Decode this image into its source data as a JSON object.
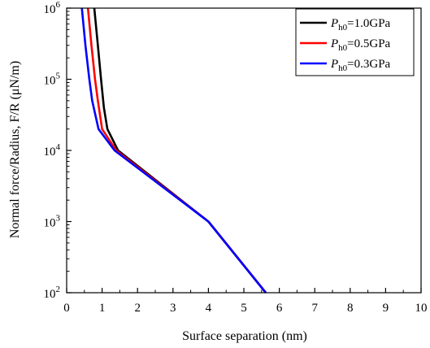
{
  "chart_data": {
    "type": "line",
    "title": "",
    "xlabel": "Surface separation (nm)",
    "ylabel": "Normal force/Radius, F/R (μN/m)",
    "xlim": [
      0,
      10
    ],
    "ylim": [
      100,
      1000000
    ],
    "yscale": "log",
    "grid": false,
    "legend_position": "top-right",
    "x_ticks": [
      "0",
      "1",
      "2",
      "3",
      "4",
      "5",
      "6",
      "7",
      "8",
      "9",
      "10"
    ],
    "y_ticks": [
      {
        "base": "10",
        "exp": "2"
      },
      {
        "base": "10",
        "exp": "3"
      },
      {
        "base": "10",
        "exp": "4"
      },
      {
        "base": "10",
        "exp": "5"
      },
      {
        "base": "10",
        "exp": "6"
      }
    ],
    "series": [
      {
        "name": "P_h0=1.0GPa",
        "label_main": "P",
        "label_sub": "h0",
        "label_rest": "=1.0GPa",
        "color": "#000000",
        "points": [
          [
            0.78,
            1000000
          ],
          [
            0.88,
            300000
          ],
          [
            0.97,
            100000
          ],
          [
            1.05,
            40000
          ],
          [
            1.15,
            20000
          ],
          [
            1.45,
            10000
          ],
          [
            4.0,
            1000
          ],
          [
            5.62,
            100
          ]
        ]
      },
      {
        "name": "P_h0=0.5GPa",
        "label_main": "P",
        "label_sub": "h0",
        "label_rest": "=0.5GPa",
        "color": "#ff0000",
        "points": [
          [
            0.6,
            1000000
          ],
          [
            0.7,
            300000
          ],
          [
            0.8,
            100000
          ],
          [
            0.88,
            50000
          ],
          [
            1.0,
            20000
          ],
          [
            1.4,
            10000
          ],
          [
            4.0,
            1000
          ],
          [
            5.62,
            100
          ]
        ]
      },
      {
        "name": "P_h0=0.3GPa",
        "label_main": "P",
        "label_sub": "h0",
        "label_rest": "=0.3GPa",
        "color": "#0000ff",
        "points": [
          [
            0.43,
            1000000
          ],
          [
            0.53,
            300000
          ],
          [
            0.64,
            100000
          ],
          [
            0.72,
            50000
          ],
          [
            0.9,
            20000
          ],
          [
            1.35,
            10000
          ],
          [
            4.0,
            1000
          ],
          [
            5.62,
            100
          ]
        ]
      }
    ]
  }
}
